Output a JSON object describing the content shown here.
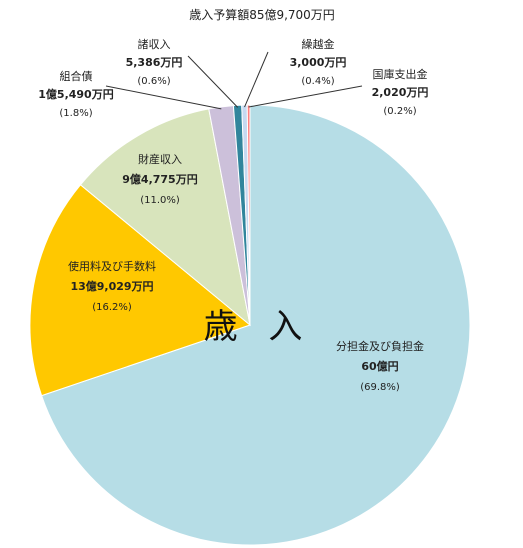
{
  "chart_data": {
    "type": "pie",
    "title": "歳入予算額85億9,700万円",
    "center_label": "歳 入",
    "slices": [
      {
        "name": "分担金及び負担金",
        "amount": "60億円",
        "percent_label": "(69.8%)",
        "value": 69.8,
        "color": "#b6dde6"
      },
      {
        "name": "使用料及び手数料",
        "amount": "13億9,029万円",
        "percent_label": "(16.2%)",
        "value": 16.2,
        "color": "#ffc800"
      },
      {
        "name": "財産収入",
        "amount": "9億4,775万円",
        "percent_label": "(11.0%)",
        "value": 11.0,
        "color": "#d8e4bc"
      },
      {
        "name": "組合債",
        "amount": "1億5,490万円",
        "percent_label": "(1.8%)",
        "value": 1.8,
        "color": "#ccc0da"
      },
      {
        "name": "諸収入",
        "amount": "5,386万円",
        "percent_label": "(0.6%)",
        "value": 0.6,
        "color": "#31859c"
      },
      {
        "name": "繰越金",
        "amount": "3,000万円",
        "percent_label": "(0.4%)",
        "value": 0.4,
        "color": "#c6d9f1"
      },
      {
        "name": "国庫支出金",
        "amount": "2,020万円",
        "percent_label": "(0.2%)",
        "value": 0.2,
        "color": "#ff8080"
      }
    ]
  }
}
